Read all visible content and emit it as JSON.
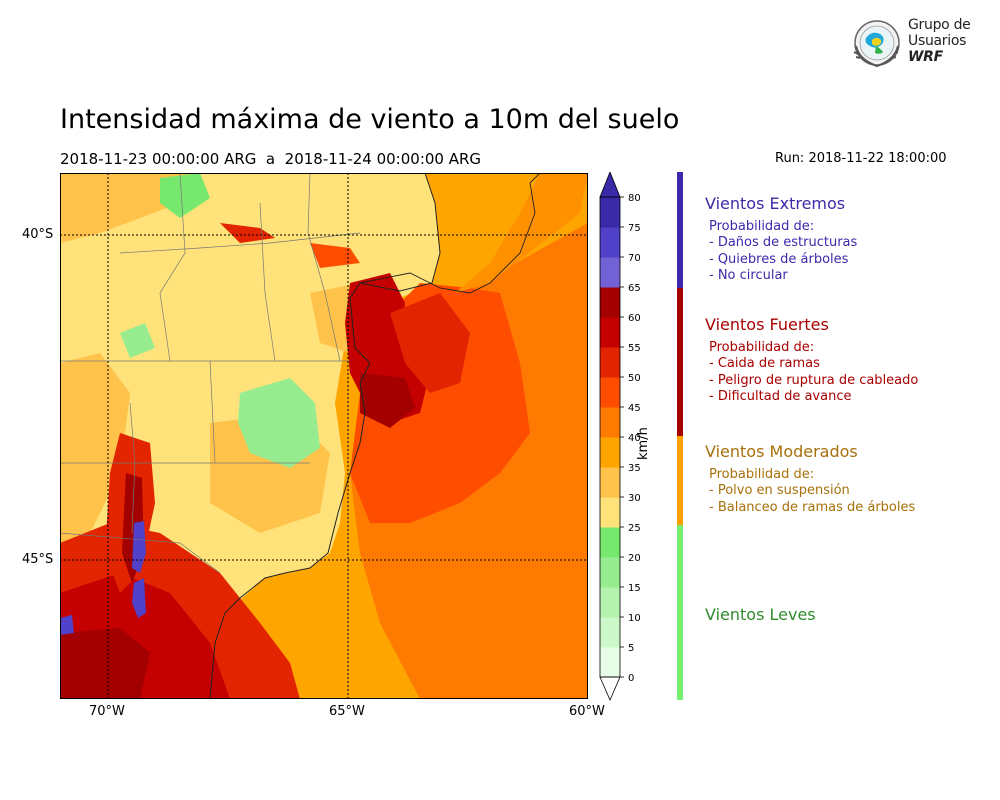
{
  "title": "Intensidad máxima de viento a 10m del suelo",
  "subtitle": "2018-11-23 00:00:00 ARG  a  2018-11-24 00:00:00 ARG",
  "run": "Run: 2018-11-22 18:00:00",
  "logo": {
    "line1": "Grupo de",
    "line2": "Usuarios",
    "line3": "WRF"
  },
  "axes": {
    "lon_ticks": [
      "70°W",
      "65°W",
      "60°W"
    ],
    "lat_ticks": [
      "40°S",
      "45°S"
    ]
  },
  "colorbar": {
    "label": "km/h",
    "ticks": [
      "0",
      "5",
      "10",
      "15",
      "20",
      "25",
      "30",
      "35",
      "40",
      "45",
      "50",
      "55",
      "60",
      "65",
      "70",
      "75",
      "80"
    ],
    "colors": [
      "#e8fde8",
      "#cdf8c9",
      "#b4f2ae",
      "#98ec90",
      "#77e86e",
      "#ffe27a",
      "#ffc24a",
      "#ffa500",
      "#ff7a00",
      "#ff4d00",
      "#e32400",
      "#c40000",
      "#a30000",
      "#7262d6",
      "#5140c8",
      "#3a2aa8"
    ]
  },
  "legend": [
    {
      "title": "Vientos Extremos",
      "heading": "Probabilidad de:",
      "items": [
        "- Daños de estructuras",
        "- Quiebres de árboles",
        "- No circular"
      ],
      "color": "#3b2aab",
      "bar_color": "#3b2aab"
    },
    {
      "title": "Vientos Fuertes",
      "heading": "Probabilidad de:",
      "items": [
        "- Caida de ramas",
        "- Peligro de ruptura de cableado",
        "- Dificultad de avance"
      ],
      "color": "#a80000",
      "bar_color": "#a30000"
    },
    {
      "title": "Vientos Moderados",
      "heading": "Probabilidad de:",
      "items": [
        "- Polvo en suspensión",
        "- Balanceo de ramas de árboles"
      ],
      "color": "#a8700a",
      "bar_color": "#ff9f00"
    },
    {
      "title": "Vientos Leves",
      "heading": "",
      "items": [],
      "color": "#2e8b2e",
      "bar_color": "#77ee6e"
    }
  ]
}
